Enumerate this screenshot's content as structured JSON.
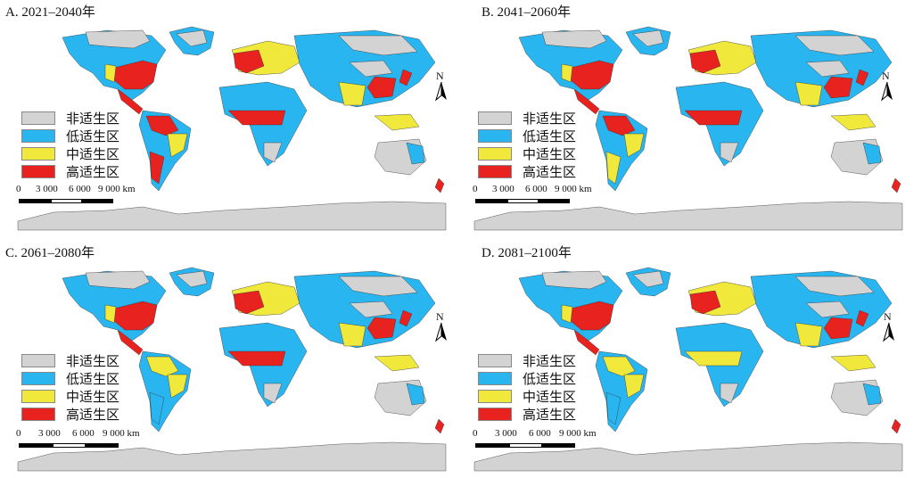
{
  "panels": [
    {
      "title": "A. 2021–2040年"
    },
    {
      "title": "B. 2041–2060年"
    },
    {
      "title": "C. 2061–2080年"
    },
    {
      "title": "D. 2081–2100年"
    }
  ],
  "legend": [
    {
      "label": "非适生区",
      "color": "#d3d3d3"
    },
    {
      "label": "低适生区",
      "color": "#29b6f0"
    },
    {
      "label": "中适生区",
      "color": "#f0e83a"
    },
    {
      "label": "高适生区",
      "color": "#e8221e"
    }
  ],
  "scale_bar": {
    "ticks": [
      "0",
      "3 000",
      "6 000",
      "9 000 km"
    ]
  },
  "north_arrow": {
    "label": "N",
    "icon": "north-arrow-icon"
  }
}
